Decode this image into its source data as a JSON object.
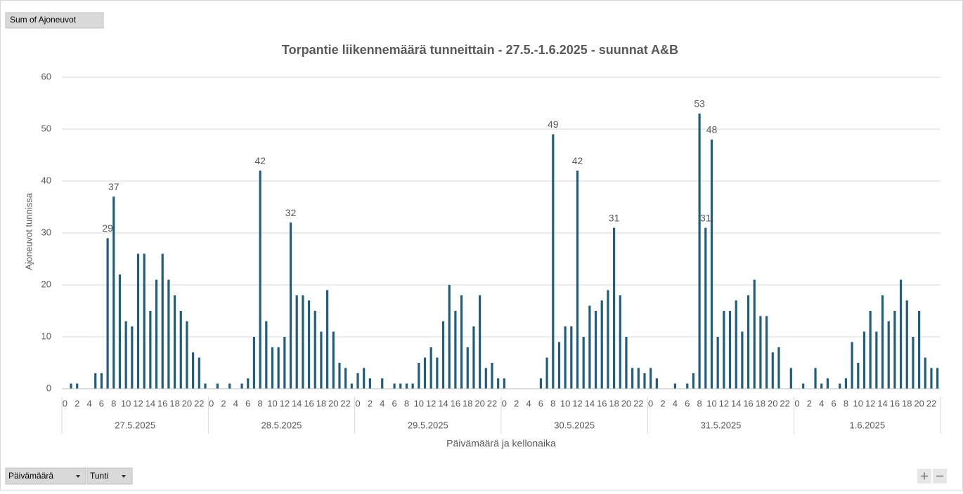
{
  "pivot": {
    "value_field": "Sum of Ajoneuvot",
    "axis_fields": [
      "Päivämäärä",
      "Tunti"
    ]
  },
  "chart_data": {
    "type": "bar",
    "title": "Torpantie liikennemäärä tunneittain - 27.5.-1.6.2025 - suunnat A&B",
    "xlabel": "Päivämäärä ja kellonaika",
    "ylabel": "Ajoneuvot tunnissa",
    "groups": [
      "27.5.2025",
      "28.5.2025",
      "29.5.2025",
      "30.5.2025",
      "31.5.2025",
      "1.6.2025"
    ],
    "categories": [
      0,
      null,
      2,
      null,
      4,
      null,
      6,
      null,
      8,
      null,
      10,
      null,
      12,
      null,
      14,
      null,
      16,
      null,
      18,
      null,
      20,
      null,
      22,
      null
    ],
    "color": "#1f5f7d",
    "values": [
      [
        0,
        1,
        1,
        0,
        0,
        3,
        3,
        29,
        37,
        22,
        13,
        12,
        26,
        26,
        15,
        21,
        26,
        21,
        18,
        15,
        13,
        7,
        6,
        1
      ],
      [
        0,
        1,
        0,
        1,
        0,
        1,
        2,
        10,
        42,
        13,
        8,
        8,
        10,
        32,
        18,
        18,
        17,
        15,
        11,
        19,
        11,
        5,
        4,
        1
      ],
      [
        3,
        4,
        2,
        0,
        2,
        0,
        1,
        1,
        1,
        1,
        5,
        6,
        8,
        6,
        13,
        20,
        15,
        18,
        8,
        12,
        18,
        4,
        5,
        2
      ],
      [
        2,
        0,
        0,
        0,
        0,
        0,
        2,
        6,
        49,
        9,
        12,
        12,
        42,
        10,
        16,
        15,
        17,
        19,
        31,
        18,
        10,
        4,
        4,
        3
      ],
      [
        4,
        2,
        0,
        0,
        1,
        0,
        1,
        3,
        53,
        31,
        48,
        10,
        15,
        15,
        17,
        11,
        18,
        21,
        14,
        14,
        7,
        8,
        0,
        4
      ],
      [
        0,
        1,
        0,
        4,
        1,
        2,
        0,
        1,
        2,
        9,
        5,
        11,
        15,
        11,
        18,
        13,
        15,
        21,
        17,
        10,
        15,
        6,
        4,
        4
      ]
    ],
    "labeled_points": [
      [
        0,
        7
      ],
      [
        0,
        8
      ],
      [
        1,
        8
      ],
      [
        1,
        13
      ],
      [
        3,
        8
      ],
      [
        3,
        12
      ],
      [
        3,
        18
      ],
      [
        4,
        8
      ],
      [
        4,
        9
      ],
      [
        4,
        10
      ]
    ],
    "ylim": [
      0,
      60
    ],
    "yticks": [
      0,
      10,
      20,
      30,
      40,
      50,
      60
    ],
    "grid": true
  }
}
